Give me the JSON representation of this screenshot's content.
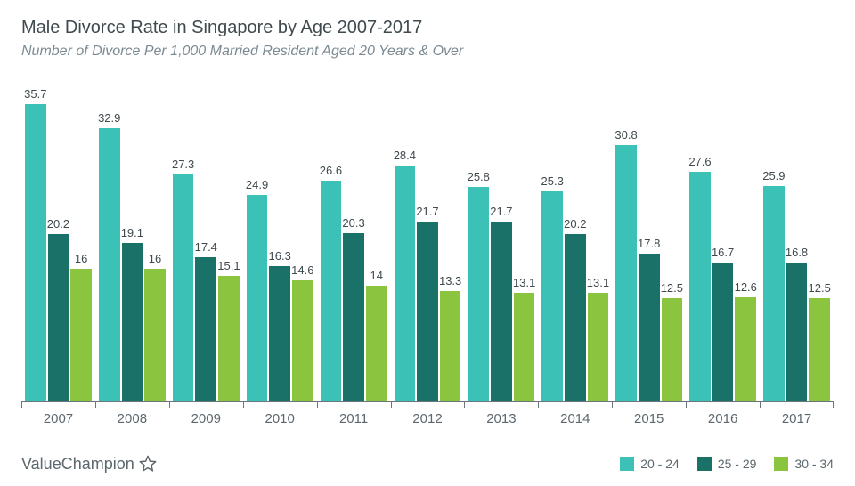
{
  "title": "Male Divorce Rate in Singapore by Age 2007-2017",
  "subtitle": "Number of Divorce Per 1,000 Married Resident Aged 20 Years & Over",
  "brand": "ValueChampion",
  "chart": {
    "type": "bar",
    "ymax": 40,
    "categories": [
      "2007",
      "2008",
      "2009",
      "2010",
      "2011",
      "2012",
      "2013",
      "2014",
      "2015",
      "2016",
      "2017"
    ],
    "series": [
      {
        "name": "20 - 24",
        "color": "#3cc1b7",
        "values": [
          35.7,
          32.9,
          27.3,
          24.9,
          26.6,
          28.4,
          25.8,
          25.3,
          30.8,
          27.6,
          25.9
        ]
      },
      {
        "name": "25 - 29",
        "color": "#1a7168",
        "values": [
          20.2,
          19.1,
          17.4,
          16.3,
          20.3,
          21.7,
          21.7,
          20.2,
          17.8,
          16.7,
          16.8
        ]
      },
      {
        "name": "30 - 34",
        "color": "#8bc540",
        "values": [
          16,
          16,
          15.1,
          14.6,
          14,
          13.3,
          13.1,
          13.1,
          12.5,
          12.6,
          12.5
        ]
      }
    ],
    "bar_label_fontsize": 13,
    "bar_label_color": "#3f4a4e",
    "axis_color": "#6c757d",
    "xlabel_fontsize": 15,
    "xlabel_color": "#5c686e",
    "background_color": "#ffffff"
  },
  "title_fontsize": 20,
  "title_color": "#3f4a4e",
  "subtitle_fontsize": 16,
  "subtitle_color": "#7b8a92"
}
